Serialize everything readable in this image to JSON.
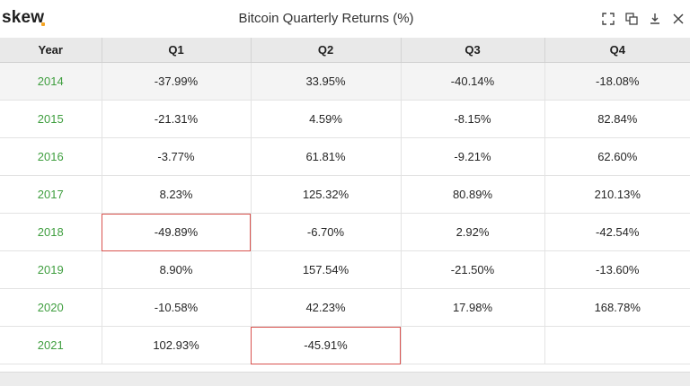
{
  "app": {
    "brand": "skew",
    "title": "Bitcoin Quarterly Returns (%)"
  },
  "toolbar": {
    "icons": [
      "expand-icon",
      "copy-icon",
      "download-icon",
      "close-icon"
    ]
  },
  "colors": {
    "year_text": "#3f9e3f",
    "highlight_border": "#d9534f",
    "brand_dot": "#f5a524"
  },
  "chart_data": {
    "type": "table",
    "title": "Bitcoin Quarterly Returns (%)",
    "columns": [
      "Year",
      "Q1",
      "Q2",
      "Q3",
      "Q4"
    ],
    "rows": [
      {
        "year": "2014",
        "q": [
          "-37.99%",
          "33.95%",
          "-40.14%",
          "-18.08%"
        ]
      },
      {
        "year": "2015",
        "q": [
          "-21.31%",
          "4.59%",
          "-8.15%",
          "82.84%"
        ]
      },
      {
        "year": "2016",
        "q": [
          "-3.77%",
          "61.81%",
          "-9.21%",
          "62.60%"
        ]
      },
      {
        "year": "2017",
        "q": [
          "8.23%",
          "125.32%",
          "80.89%",
          "210.13%"
        ]
      },
      {
        "year": "2018",
        "q": [
          "-49.89%",
          "-6.70%",
          "2.92%",
          "-42.54%"
        ]
      },
      {
        "year": "2019",
        "q": [
          "8.90%",
          "157.54%",
          "-21.50%",
          "-13.60%"
        ]
      },
      {
        "year": "2020",
        "q": [
          "-10.58%",
          "42.23%",
          "17.98%",
          "168.78%"
        ]
      },
      {
        "year": "2021",
        "q": [
          "102.93%",
          "-45.91%",
          "",
          ""
        ]
      }
    ],
    "highlighted": [
      {
        "year": "2018",
        "column": "Q1"
      },
      {
        "year": "2021",
        "column": "Q2"
      }
    ]
  }
}
